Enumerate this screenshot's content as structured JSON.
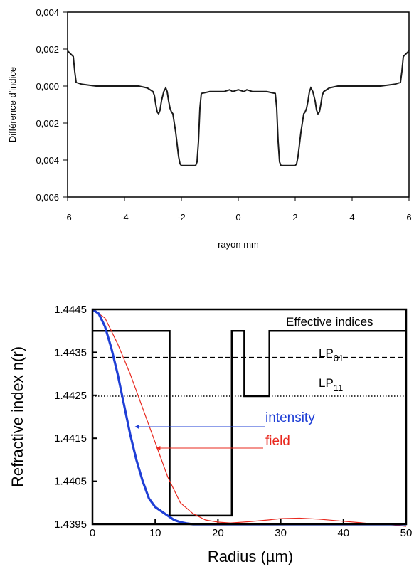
{
  "chart_data": [
    {
      "type": "line",
      "xlabel": "rayon mm",
      "ylabel": "Différence d'indice",
      "xlim": [
        -6,
        6
      ],
      "ylim": [
        -0.006,
        0.004
      ],
      "x_ticks": [
        -6,
        -4,
        -2,
        0,
        2,
        4,
        6
      ],
      "x_tick_labels": [
        "-6",
        "-4",
        "-2",
        "0",
        "2",
        "4",
        "6"
      ],
      "y_ticks": [
        0.004,
        0.002,
        0.0,
        -0.002,
        -0.004,
        -0.006
      ],
      "y_tick_labels": [
        "0,004",
        "0,002",
        "0,000",
        "-0,002",
        "-0,004",
        "-0,006"
      ],
      "grid": false,
      "series": [
        {
          "color": "#1a1a1a",
          "x": [
            -6.0,
            -5.8,
            -5.75,
            -5.7,
            -5.5,
            -5.0,
            -4.5,
            -4.0,
            -3.5,
            -3.2,
            -3.0,
            -2.95,
            -2.9,
            -2.85,
            -2.8,
            -2.75,
            -2.7,
            -2.62,
            -2.55,
            -2.5,
            -2.45,
            -2.4,
            -2.35,
            -2.3,
            -2.2,
            -2.1,
            -2.05,
            -2.0,
            -1.9,
            -1.5,
            -1.45,
            -1.4,
            -1.35,
            -1.3,
            -1.0,
            -0.5,
            -0.3,
            -0.2,
            0.0,
            0.2,
            0.3,
            0.5,
            1.0,
            1.3,
            1.35,
            1.4,
            1.45,
            1.5,
            1.9,
            2.0,
            2.05,
            2.1,
            2.2,
            2.3,
            2.35,
            2.4,
            2.45,
            2.5,
            2.55,
            2.62,
            2.7,
            2.75,
            2.8,
            2.85,
            2.9,
            2.95,
            3.0,
            3.2,
            3.5,
            4.0,
            4.5,
            5.0,
            5.5,
            5.7,
            5.75,
            5.8,
            6.0
          ],
          "y": [
            0.0019,
            0.0016,
            0.0008,
            0.0002,
            0.0001,
            0.0,
            0.0,
            0.0,
            0.0,
            -0.0001,
            -0.0003,
            -0.0005,
            -0.001,
            -0.0014,
            -0.0015,
            -0.0013,
            -0.0008,
            -0.0003,
            -0.0001,
            -0.0003,
            -0.0008,
            -0.0012,
            -0.0014,
            -0.0015,
            -0.0025,
            -0.0038,
            -0.0042,
            -0.0043,
            -0.0043,
            -0.0043,
            -0.0041,
            -0.003,
            -0.0012,
            -0.0004,
            -0.0003,
            -0.0003,
            -0.0002,
            -0.0003,
            -0.0002,
            -0.0003,
            -0.0002,
            -0.0003,
            -0.0003,
            -0.0004,
            -0.0012,
            -0.003,
            -0.0041,
            -0.0043,
            -0.0043,
            -0.0043,
            -0.0042,
            -0.0038,
            -0.0025,
            -0.0015,
            -0.0014,
            -0.0012,
            -0.0008,
            -0.0003,
            -0.0001,
            -0.0003,
            -0.0008,
            -0.0013,
            -0.0015,
            -0.0014,
            -0.001,
            -0.0005,
            -0.0003,
            -0.0001,
            0.0,
            0.0,
            0.0,
            0.0,
            0.0001,
            0.0002,
            0.0008,
            0.0016,
            0.0019
          ]
        }
      ]
    },
    {
      "type": "line",
      "xlabel": "Radius (µm)",
      "ylabel": "Refractive index n(r)",
      "xlim": [
        0,
        50
      ],
      "ylim": [
        1.4395,
        1.4445
      ],
      "x_ticks": [
        0,
        10,
        20,
        30,
        40,
        50
      ],
      "x_tick_labels": [
        "0",
        "10",
        "20",
        "30",
        "40",
        "50"
      ],
      "y_ticks": [
        1.4445,
        1.4435,
        1.4425,
        1.4415,
        1.4405,
        1.4395
      ],
      "y_tick_labels": [
        "1.4445",
        "1.4435",
        "1.4425",
        "1.4415",
        "1.4405",
        "1.4395"
      ],
      "grid": false,
      "annotations": {
        "effective_indices": "Effective indices",
        "lp01_main": "LP",
        "lp01_sub": "01",
        "lp11_main": "LP",
        "lp11_sub": "11",
        "intensity": "intensity",
        "field": "field"
      },
      "colors": {
        "profile": "#000000",
        "intensity": "#1f3fd6",
        "field": "#e8281e"
      },
      "effective_index_lines": [
        {
          "mode": "LP01",
          "y": 1.44338,
          "style": "dashed"
        },
        {
          "mode": "LP11",
          "y": 1.44248,
          "style": "dotted"
        }
      ],
      "series": [
        {
          "x": [
            0,
            12.3,
            12.3,
            22.2,
            22.2,
            24.2,
            24.2,
            28.2,
            28.2,
            50
          ],
          "y": [
            1.444,
            1.444,
            1.4397,
            1.4397,
            1.444,
            1.444,
            1.44248,
            1.44248,
            1.444,
            1.444
          ]
        },
        {
          "name": "intensity",
          "x": [
            0,
            1,
            2,
            3,
            4,
            5,
            6,
            7,
            8,
            9,
            10,
            11,
            12,
            13,
            14,
            15,
            16,
            18,
            20,
            25,
            30,
            40,
            50
          ],
          "y": [
            1.4445,
            1.4444,
            1.4441,
            1.4436,
            1.443,
            1.4423,
            1.4416,
            1.441,
            1.4405,
            1.4401,
            1.4399,
            1.4398,
            1.4397,
            1.4396,
            1.43955,
            1.43952,
            1.4395,
            1.4395,
            1.4395,
            1.4395,
            1.4395,
            1.4395,
            1.4395
          ]
        },
        {
          "name": "field",
          "x": [
            0,
            2,
            4,
            6,
            8,
            10,
            12,
            14,
            16,
            18,
            20,
            22,
            25,
            28,
            30,
            33,
            36,
            40,
            44,
            48,
            50
          ],
          "y": [
            1.4445,
            1.4443,
            1.4437,
            1.443,
            1.4422,
            1.4414,
            1.4406,
            1.44,
            1.43975,
            1.4396,
            1.43955,
            1.43953,
            1.43956,
            1.4396,
            1.43963,
            1.43964,
            1.43962,
            1.43957,
            1.43952,
            1.43948,
            1.43945
          ]
        }
      ]
    }
  ]
}
